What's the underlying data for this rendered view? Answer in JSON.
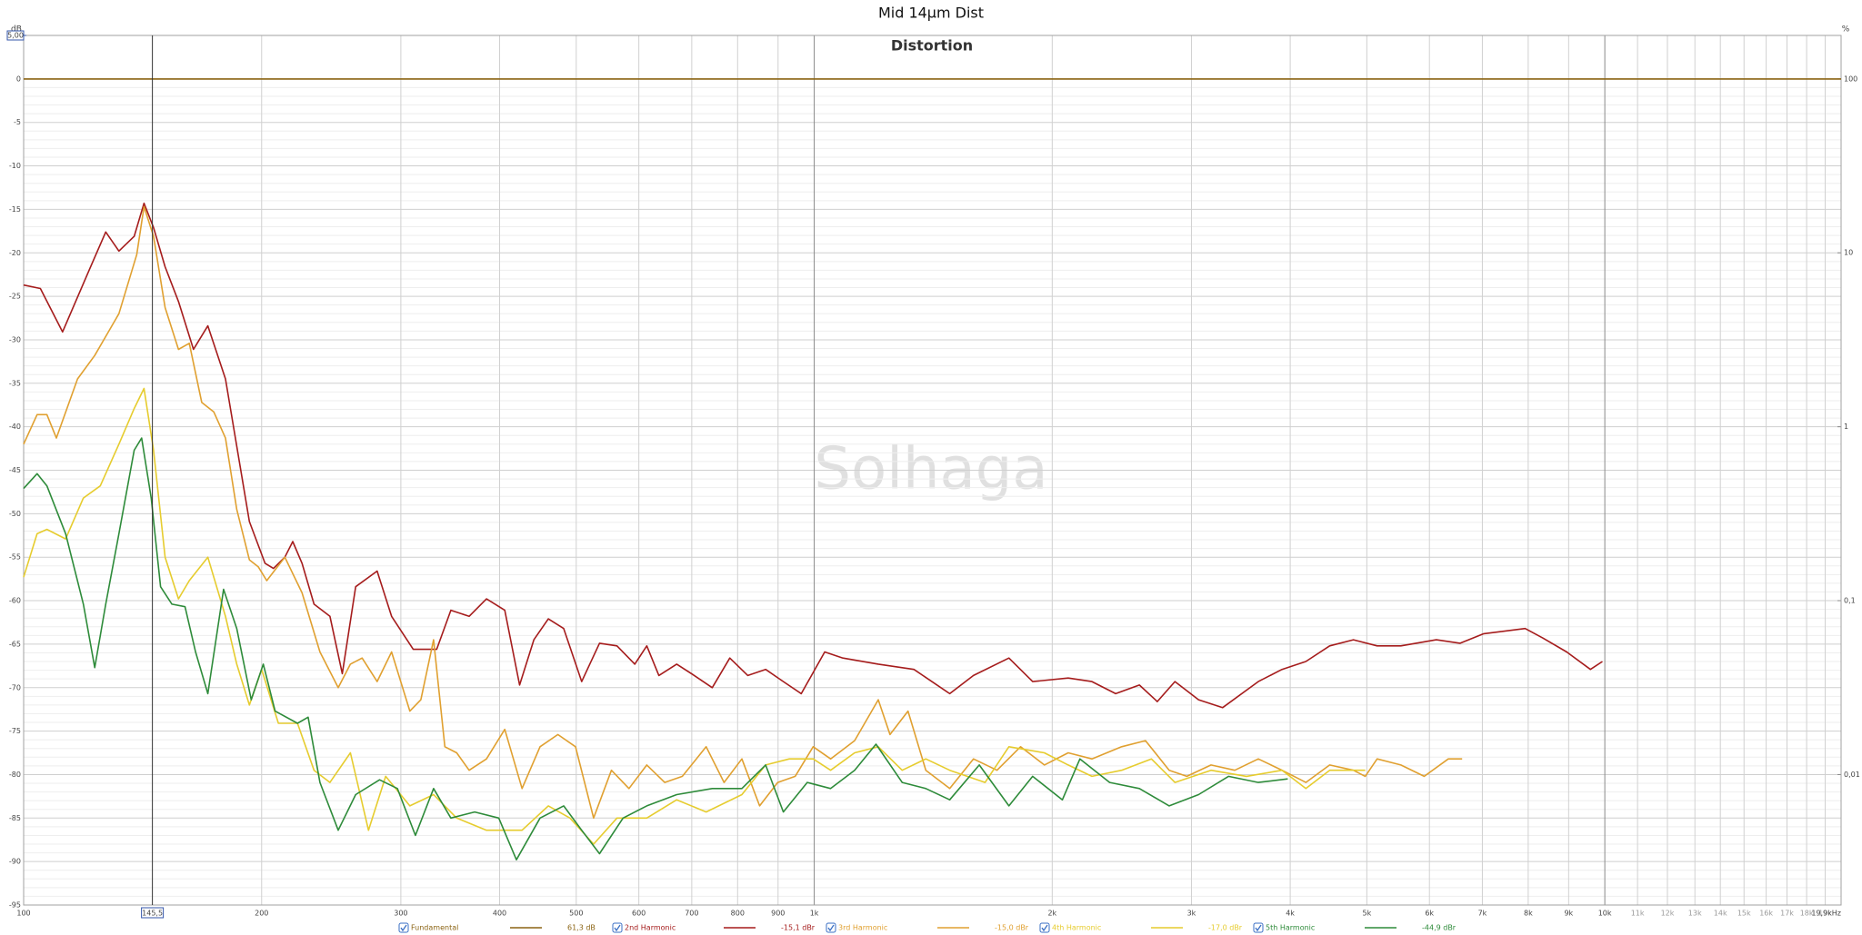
{
  "chart_data": {
    "type": "line",
    "title": "Mid 14µm Dist",
    "subtitle": "Distortion",
    "watermark": "Solhaga",
    "ylabel": "dB",
    "y2label": "%",
    "xscale": "log",
    "y2scale": "log",
    "grid": true,
    "minor_grid": true,
    "xlim": [
      100,
      19900
    ],
    "ylim": [
      -95,
      5
    ],
    "y2lim": [
      0.001778,
      177.8
    ],
    "xticks": [
      100,
      200,
      300,
      400,
      500,
      600,
      700,
      800,
      900,
      {
        "value": 1000,
        "label": "1k"
      },
      {
        "value": 2000,
        "label": "2k"
      },
      {
        "value": 3000,
        "label": "3k"
      },
      {
        "value": 4000,
        "label": "4k"
      },
      {
        "value": 5000,
        "label": "5k"
      },
      {
        "value": 6000,
        "label": "6k"
      },
      {
        "value": 7000,
        "label": "7k"
      },
      {
        "value": 8000,
        "label": "8k"
      },
      {
        "value": 9000,
        "label": "9k"
      },
      {
        "value": 10000,
        "label": "10k"
      },
      {
        "value": 11000,
        "label": "11k"
      },
      {
        "value": 12000,
        "label": "12k"
      },
      {
        "value": 13000,
        "label": "13k"
      },
      {
        "value": 14000,
        "label": "14k"
      },
      {
        "value": 15000,
        "label": "15k"
      },
      {
        "value": 16000,
        "label": "16k"
      },
      {
        "value": 17000,
        "label": "17k"
      },
      {
        "value": 18000,
        "label": "18k"
      },
      {
        "value": 19000,
        "label": "19k"
      },
      {
        "value": 19900,
        "label": "19,9kHz"
      }
    ],
    "yticks": [
      0,
      -5,
      -10,
      -15,
      -20,
      -25,
      -30,
      -35,
      -40,
      -45,
      -50,
      -55,
      -60,
      -65,
      -70,
      -75,
      -80,
      -85,
      -90,
      -95
    ],
    "y2ticks": [
      100,
      10,
      1,
      {
        "value": 0.1,
        "label": "0,1"
      },
      {
        "value": 0.01,
        "label": "0,01"
      }
    ],
    "cursor": {
      "value": 145.5,
      "label": "145,5"
    },
    "ycursor": {
      "value": 5,
      "label": "5,00"
    },
    "series": [
      {
        "name": "Fundamental",
        "color": "#8b6414",
        "readout": "61,3 dB",
        "x": [
          100,
          19900
        ],
        "values": [
          0,
          0
        ]
      },
      {
        "name": "2nd Harmonic",
        "color": "#a51c1c",
        "readout": "-15,1 dBr",
        "x": [
          100,
          105,
          112,
          121,
          127,
          132,
          138,
          142,
          146,
          151,
          157,
          164,
          171,
          180,
          193,
          202,
          207,
          214,
          219,
          225,
          233,
          244,
          253,
          263,
          280,
          292,
          311,
          333,
          347,
          366,
          385,
          406,
          424,
          442,
          461,
          482,
          508,
          535,
          563,
          593,
          614,
          636,
          670,
          705,
          743,
          782,
          824,
          868,
          914,
          963,
          1031,
          1087,
          1205,
          1337,
          1484,
          1590,
          1763,
          1889,
          2095,
          2245,
          2406,
          2578,
          2716,
          2859,
          3063,
          3285,
          3645,
          3906,
          4187,
          4487,
          4808,
          5152,
          5521,
          6122,
          6561,
          7029,
          7930,
          8350,
          8950,
          9590,
          9930
        ],
        "values": [
          -23.7,
          -24.1,
          -29.1,
          -22.0,
          -17.6,
          -19.8,
          -18.1,
          -14.3,
          -17.1,
          -21.6,
          -25.6,
          -31.1,
          -28.4,
          -34.5,
          -50.9,
          -55.7,
          -56.3,
          -55.0,
          -53.2,
          -55.7,
          -60.4,
          -61.8,
          -68.4,
          -58.4,
          -56.6,
          -61.8,
          -65.6,
          -65.6,
          -61.1,
          -61.8,
          -59.8,
          -61.1,
          -69.7,
          -64.5,
          -62.1,
          -63.2,
          -69.3,
          -64.9,
          -65.2,
          -67.3,
          -65.2,
          -68.6,
          -67.3,
          -68.6,
          -70.0,
          -66.6,
          -68.6,
          -67.9,
          -69.3,
          -70.7,
          -65.9,
          -66.6,
          -67.3,
          -67.9,
          -70.7,
          -68.6,
          -66.6,
          -69.3,
          -68.9,
          -69.3,
          -70.7,
          -69.7,
          -71.6,
          -69.3,
          -71.4,
          -72.3,
          -69.3,
          -67.9,
          -67.0,
          -65.2,
          -64.5,
          -65.2,
          -65.2,
          -64.5,
          -64.9,
          -63.8,
          -63.2,
          -64.3,
          -65.9,
          -67.9,
          -67.0
        ]
      },
      {
        "name": "3rd Harmonic",
        "color": "#e0a030",
        "readout": "-15,0 dBr",
        "x": [
          100,
          104,
          107,
          110,
          117,
          123,
          132,
          139,
          142,
          146,
          151,
          157,
          162,
          168,
          174,
          180,
          186,
          193,
          198,
          203,
          214,
          225,
          237,
          250,
          259,
          268,
          280,
          292,
          308,
          318,
          330,
          341,
          353,
          366,
          385,
          406,
          427,
          450,
          474,
          499,
          526,
          554,
          583,
          614,
          647,
          681,
          730,
          769,
          810,
          853,
          899,
          946,
          997,
          1049,
          1125,
          1205,
          1247,
          1314,
          1384,
          1484,
          1590,
          1703,
          1824,
          1955,
          2095,
          2245,
          2448,
          2624,
          2812,
          2960,
          3176,
          3403,
          3645,
          3906,
          4187,
          4487,
          4808,
          4977,
          5152,
          5521,
          5910,
          6340,
          6600
        ],
        "values": [
          -42.0,
          -38.6,
          -38.6,
          -41.3,
          -34.5,
          -31.8,
          -27.0,
          -20.2,
          -14.7,
          -18.1,
          -26.3,
          -31.1,
          -30.4,
          -37.2,
          -38.3,
          -41.3,
          -49.5,
          -55.3,
          -56.1,
          -57.7,
          -55.0,
          -59.1,
          -65.9,
          -70.0,
          -67.3,
          -66.6,
          -69.3,
          -65.9,
          -72.7,
          -71.4,
          -64.5,
          -76.8,
          -77.5,
          -79.5,
          -78.2,
          -74.8,
          -81.6,
          -76.8,
          -75.4,
          -76.8,
          -85.0,
          -79.5,
          -81.6,
          -78.9,
          -80.9,
          -80.2,
          -76.8,
          -80.9,
          -78.2,
          -83.6,
          -80.9,
          -80.2,
          -76.8,
          -78.2,
          -76.1,
          -71.4,
          -75.4,
          -72.7,
          -79.5,
          -81.6,
          -78.2,
          -79.5,
          -76.8,
          -78.9,
          -77.5,
          -78.2,
          -76.8,
          -76.1,
          -79.5,
          -80.2,
          -78.9,
          -79.5,
          -78.2,
          -79.5,
          -80.9,
          -78.9,
          -79.5,
          -80.2,
          -78.2,
          -78.9,
          -80.2,
          -78.2,
          -78.2
        ]
      },
      {
        "name": "4th Harmonic",
        "color": "#e6cc2e",
        "readout": "-17,0 dBr",
        "x": [
          100,
          104,
          107,
          113,
          119,
          125,
          132,
          138,
          142,
          146,
          151,
          157,
          162,
          171,
          180,
          186,
          193,
          200,
          210,
          222,
          233,
          244,
          259,
          273,
          287,
          308,
          330,
          353,
          385,
          427,
          461,
          491,
          526,
          563,
          614,
          670,
          730,
          810,
          868,
          930,
          997,
          1049,
          1125,
          1205,
          1292,
          1384,
          1484,
          1645,
          1763,
          1955,
          2095,
          2245,
          2448,
          2670,
          2859,
          3176,
          3522,
          3906,
          4187,
          4487,
          4977
        ],
        "values": [
          -57.3,
          -52.3,
          -51.8,
          -52.9,
          -48.2,
          -46.8,
          -42.0,
          -37.9,
          -35.6,
          -42.7,
          -55.0,
          -59.8,
          -57.7,
          -55.0,
          -61.8,
          -67.3,
          -72.0,
          -67.9,
          -74.1,
          -74.1,
          -79.5,
          -80.9,
          -77.5,
          -86.4,
          -80.2,
          -83.6,
          -82.3,
          -85.0,
          -86.4,
          -86.4,
          -83.6,
          -85.0,
          -88.0,
          -85.0,
          -85.0,
          -82.9,
          -84.3,
          -82.3,
          -78.9,
          -78.2,
          -78.2,
          -79.5,
          -77.5,
          -76.8,
          -79.5,
          -78.2,
          -79.5,
          -80.9,
          -76.8,
          -77.5,
          -78.9,
          -80.2,
          -79.5,
          -78.2,
          -80.9,
          -79.5,
          -80.2,
          -79.5,
          -81.6,
          -79.5,
          -79.5
        ]
      },
      {
        "name": "5th Harmonic",
        "color": "#2e8b3a",
        "readout": "-44,9 dBr",
        "x": [
          100,
          104,
          107,
          113,
          119,
          123,
          127,
          132,
          138,
          141,
          145,
          149,
          154,
          160,
          165,
          171,
          179,
          186,
          194,
          201,
          208,
          222,
          229,
          237,
          250,
          263,
          282,
          297,
          313,
          330,
          347,
          372,
          399,
          420,
          450,
          482,
          508,
          535,
          573,
          614,
          670,
          743,
          810,
          868,
          914,
          980,
          1049,
          1125,
          1197,
          1292,
          1384,
          1484,
          1617,
          1763,
          1889,
          2060,
          2168,
          2364,
          2578,
          2812,
          3063,
          3342,
          3645,
          3972
        ],
        "values": [
          -47.1,
          -45.4,
          -46.8,
          -52.3,
          -60.4,
          -67.7,
          -60.4,
          -52.3,
          -42.7,
          -41.3,
          -48.2,
          -58.4,
          -60.4,
          -60.7,
          -65.9,
          -70.7,
          -58.7,
          -63.2,
          -71.4,
          -67.3,
          -72.7,
          -74.1,
          -73.4,
          -80.9,
          -86.4,
          -82.3,
          -80.6,
          -81.6,
          -87.0,
          -81.6,
          -85.0,
          -84.3,
          -85.0,
          -89.8,
          -85.0,
          -83.6,
          -86.4,
          -89.1,
          -85.0,
          -83.6,
          -82.3,
          -81.6,
          -81.6,
          -78.9,
          -84.3,
          -80.9,
          -81.6,
          -79.5,
          -76.5,
          -80.9,
          -81.6,
          -82.9,
          -78.9,
          -83.6,
          -80.2,
          -82.9,
          -78.2,
          -80.9,
          -81.6,
          -83.6,
          -82.3,
          -80.2,
          -80.9,
          -80.5
        ]
      }
    ]
  }
}
